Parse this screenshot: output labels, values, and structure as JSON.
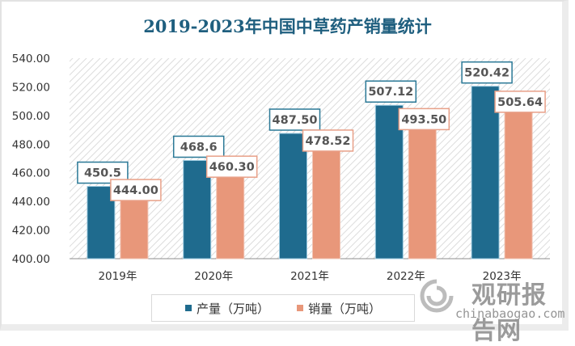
{
  "chart_data": {
    "type": "bar",
    "title": "2019-2023年中国中草药产销量统计",
    "xlabel": "",
    "ylabel": "",
    "categories": [
      "2019年",
      "2020年",
      "2021年",
      "2022年",
      "2023年"
    ],
    "series": [
      {
        "name": "产量（万吨）",
        "color": "#1f6b8e",
        "values": [
          450.5,
          468.6,
          487.5,
          507.12,
          520.42
        ],
        "labels": [
          "450.5",
          "468.6",
          "487.50",
          "507.12",
          "520.42"
        ]
      },
      {
        "name": "销量（万吨）",
        "color": "#e8977a",
        "values": [
          444.0,
          460.3,
          478.52,
          493.5,
          505.64
        ],
        "labels": [
          "444.00",
          "460.30",
          "478.52",
          "493.50",
          "505.64"
        ]
      }
    ],
    "ylim": [
      400,
      540
    ],
    "yticks": [
      "400.00",
      "420.00",
      "440.00",
      "460.00",
      "480.00",
      "500.00",
      "520.00",
      "540.00"
    ],
    "ytick_values": [
      400,
      420,
      440,
      460,
      480,
      500,
      520,
      540
    ],
    "grid": false,
    "legend_position": "bottom",
    "background_pattern": "diagonal-hatch"
  },
  "watermark": {
    "cn": "观研报告网",
    "en": "chinabaogao.com"
  }
}
